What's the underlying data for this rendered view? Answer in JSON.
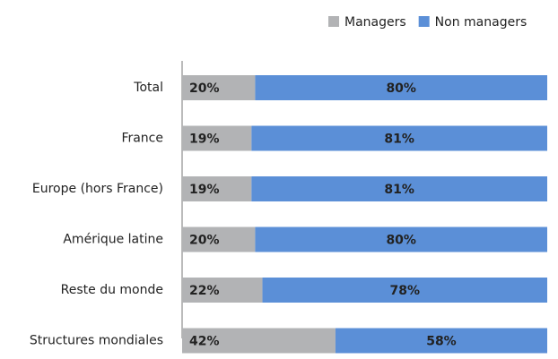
{
  "chart_data": {
    "type": "stacked-barh",
    "categories": [
      "Total",
      "France",
      "Europe (hors France)",
      "Amérique latine",
      "Reste du monde",
      "Structures mondiales"
    ],
    "series": [
      {
        "name": "Managers",
        "color": "#b2b3b5",
        "label_color": "#2b2a5c",
        "values": [
          20,
          19,
          19,
          20,
          22,
          42
        ],
        "value_labels": [
          "20%",
          "19%",
          "19%",
          "20%",
          "22%",
          "42%"
        ]
      },
      {
        "name": "Non managers",
        "color": "#5b8fd7",
        "label_color": "#ffffff",
        "values": [
          80,
          81,
          81,
          80,
          78,
          58
        ],
        "value_labels": [
          "80%",
          "81%",
          "81%",
          "80%",
          "78%",
          "58%"
        ]
      }
    ],
    "legend": "top-right"
  }
}
